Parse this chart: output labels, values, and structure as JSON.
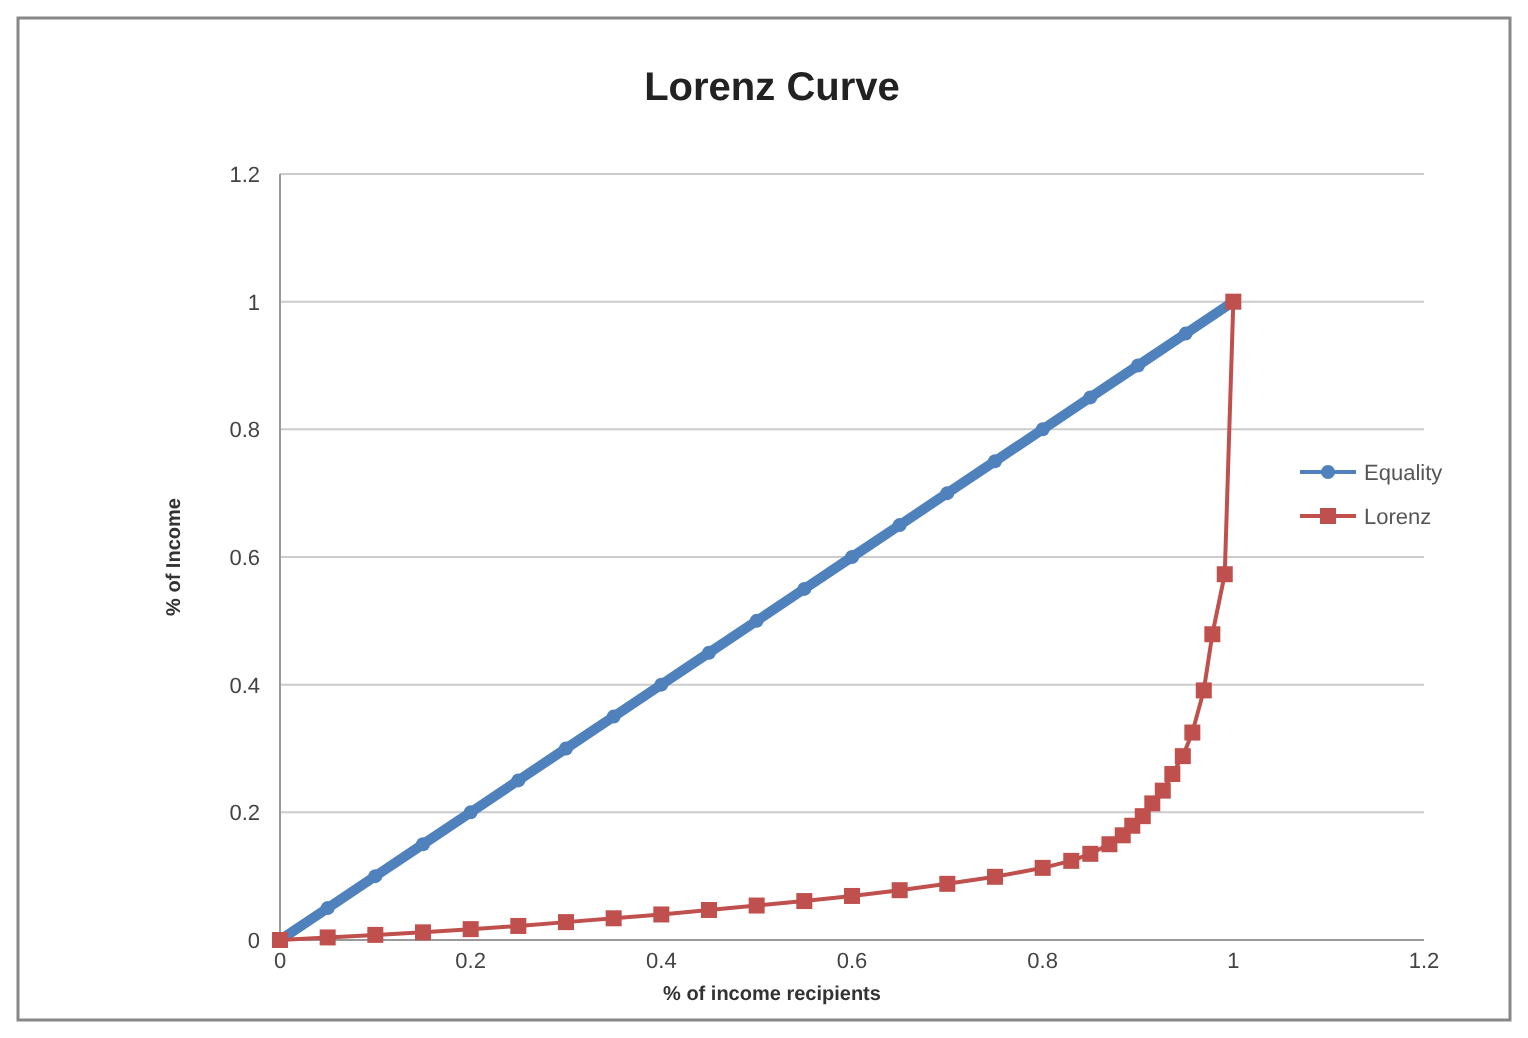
{
  "chart_data": {
    "type": "line",
    "title": "Lorenz Curve",
    "xlabel": "% of income recipients",
    "ylabel": "% of Income",
    "xlim": [
      0,
      1.2
    ],
    "xticks": [
      0,
      0.2,
      0.4,
      0.6,
      0.8,
      1,
      1.2
    ],
    "ylim": [
      0,
      1.2
    ],
    "yticks": [
      0,
      0.2,
      0.4,
      0.6,
      0.8,
      1,
      1.2
    ],
    "grid": "y",
    "legend": "right",
    "series": [
      {
        "name": "Equality",
        "color": "#4f81bd",
        "marker": "circle",
        "x": [
          0,
          0.05,
          0.1,
          0.15,
          0.2,
          0.25,
          0.3,
          0.35,
          0.4,
          0.45,
          0.5,
          0.55,
          0.6,
          0.65,
          0.7,
          0.75,
          0.8,
          0.85,
          0.9,
          0.95,
          1
        ],
        "values": [
          0,
          0.05,
          0.1,
          0.15,
          0.2,
          0.25,
          0.3,
          0.35,
          0.4,
          0.45,
          0.5,
          0.55,
          0.6,
          0.65,
          0.7,
          0.75,
          0.8,
          0.85,
          0.9,
          0.95,
          1
        ]
      },
      {
        "name": "Lorenz",
        "color": "#c0504d",
        "marker": "square",
        "x": [
          0,
          0.05,
          0.1,
          0.15,
          0.2,
          0.25,
          0.3,
          0.35,
          0.4,
          0.45,
          0.5,
          0.55,
          0.6,
          0.65,
          0.7,
          0.75,
          0.8,
          0.83,
          0.85,
          0.87,
          0.884,
          0.894,
          0.905,
          0.915,
          0.926,
          0.936,
          0.947,
          0.957,
          0.969,
          0.978,
          0.991,
          1
        ],
        "values": [
          0,
          0.004,
          0.008,
          0.012,
          0.017,
          0.022,
          0.028,
          0.034,
          0.04,
          0.047,
          0.054,
          0.061,
          0.069,
          0.078,
          0.088,
          0.099,
          0.113,
          0.124,
          0.135,
          0.15,
          0.164,
          0.179,
          0.194,
          0.214,
          0.234,
          0.26,
          0.288,
          0.325,
          0.391,
          0.479,
          0.573,
          1
        ]
      }
    ]
  }
}
